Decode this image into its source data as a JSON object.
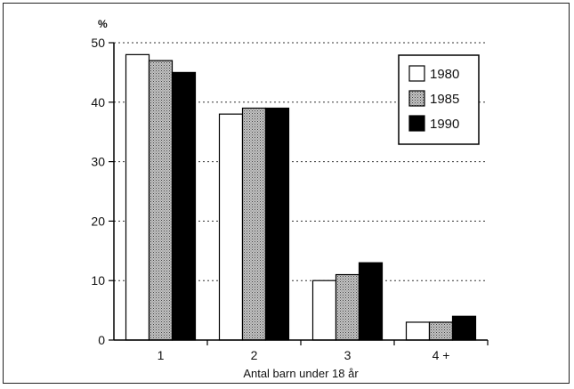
{
  "chart_data": {
    "type": "bar",
    "categories": [
      "1",
      "2",
      "3",
      "4 +"
    ],
    "series": [
      {
        "name": "1980",
        "values": [
          48,
          38,
          10,
          3
        ],
        "color": "#ffffff",
        "pattern": "solid"
      },
      {
        "name": "1985",
        "values": [
          47,
          39,
          11,
          3
        ],
        "color": "#9a9a9a",
        "pattern": "dotted"
      },
      {
        "name": "1990",
        "values": [
          45,
          39,
          13,
          4
        ],
        "color": "#000000",
        "pattern": "solid"
      }
    ],
    "y_unit": "%",
    "xlabel": "Antal barn under 18 år",
    "ylim": [
      0,
      50
    ],
    "yticks": [
      0,
      10,
      20,
      30,
      40,
      50
    ],
    "grid": "dotted horizontal",
    "legend_position": "top-right"
  }
}
